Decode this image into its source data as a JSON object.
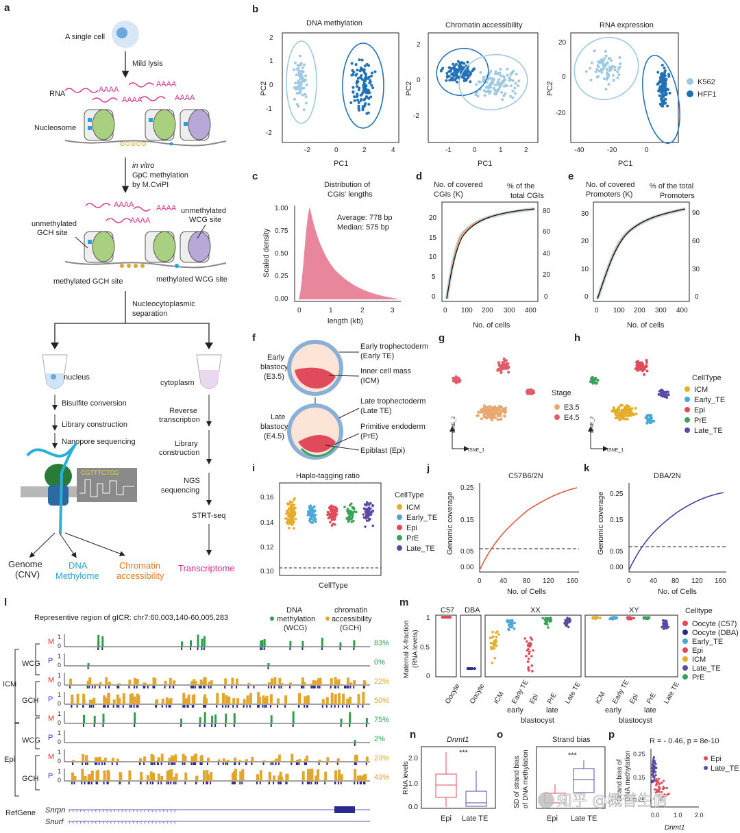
{
  "panels": {
    "a": {
      "letter": "a",
      "single_cell": "A single cell",
      "mild_lysis": "Mild lysis",
      "rna": "RNA",
      "polyA": "AAAA",
      "nucleosome": "Nucleosome",
      "in_vitro": "in vitro",
      "gpc_line1": "GpC methylation",
      "gpc_line2": "by M.CviPI",
      "unmeth_gch_1": "unmethylated",
      "unmeth_gch_2": "GCH site",
      "unmeth_wcg_1": "unmethylated",
      "unmeth_wcg_2": "WCG site",
      "meth_gch": "methylated GCH site",
      "meth_wcg": "methylated WCG site",
      "nucleo_1": "Nucleocytoplasmic",
      "nucleo_2": "separation",
      "nucleus": "nucleus",
      "cytoplasm": "cytoplasm",
      "bisulfite": "Bisulfite conversion",
      "library": "Library construction",
      "nanopore": "Nanopore sequencing",
      "rt_1": "Reverse",
      "rt_2": "transcription",
      "lib2_1": "Library",
      "lib2_2": "construction",
      "ngs_1": "NGS",
      "ngs_2": "sequencing",
      "strt": "STRT-seq",
      "genome_1": "Genome",
      "genome_2": "(CNV)",
      "dna_1": "DNA",
      "dna_2": "Methylome",
      "chrom_1": "Chromatin",
      "chrom_2": "accessibility",
      "transcriptome": "Transcriptome",
      "seq_text": "CGTTTCTCG"
    },
    "b": {
      "letter": "b",
      "titles": [
        "DNA methylation",
        "Chromatin accessibility",
        "RNA expression"
      ],
      "xlabel": "PC1",
      "ylabel": "PC2",
      "plot1_xticks": [
        "-2",
        "0",
        "2",
        "4"
      ],
      "plot1_yticks": [
        "2",
        "1",
        "0",
        "-1",
        "-2"
      ],
      "plot2_xticks": [
        "-1",
        "0",
        "1",
        "2"
      ],
      "plot2_yticks": [
        "2",
        "0",
        "-2"
      ],
      "plot3_xticks": [
        "-40",
        "-20",
        "0"
      ],
      "plot3_yticks": [
        "20",
        "0",
        "-20"
      ],
      "legend": [
        "K562",
        "HFF1"
      ],
      "colors": {
        "K562": "#9ecae1",
        "HFF1": "#2171b5"
      }
    },
    "c": {
      "letter": "c",
      "title_1": "Distribution of",
      "title_2": "CGIs' lengths",
      "avg": "Average: 778 bp",
      "median": "Median: 575 bp",
      "ylabel": "Scaled density",
      "xlabel": "length (kb)",
      "yticks": [
        "1.00",
        "0.75",
        "0.50",
        "0.25",
        "0.00"
      ],
      "xticks": [
        "0",
        "1",
        "2",
        "3"
      ],
      "color": "#e8879c"
    },
    "d": {
      "letter": "d",
      "left_1": "No. of covered",
      "left_2": "CGIs (K)",
      "right_1": "% of the",
      "right_2": "total CGIs",
      "yticks": [
        "20",
        "15",
        "10",
        "5",
        "0"
      ],
      "ryticks": [
        "80",
        "60",
        "40",
        "20",
        "0"
      ],
      "xticks": [
        "0",
        "100",
        "200",
        "300",
        "400"
      ],
      "xlabel": "No. of cells"
    },
    "e": {
      "letter": "e",
      "left_1": "No. of covered",
      "left_2": "Promoters (K)",
      "right_1": "% of the total",
      "right_2": "Promoters",
      "yticks": [
        "30",
        "20",
        "10",
        "0"
      ],
      "ryticks": [
        "90",
        "60",
        "30",
        "0"
      ],
      "xticks": [
        "0",
        "100",
        "200",
        "300",
        "400"
      ],
      "xlabel": "No. of cells"
    },
    "f": {
      "letter": "f",
      "early_1": "Early",
      "early_2": "blastocyst",
      "early_3": "(E3.5)",
      "late_1": "Late",
      "late_2": "blastocyst",
      "late_3": "(E4.5)",
      "ete_1": "Early trophectoderm",
      "ete_2": "(Early TE)",
      "icm_1": "Inner cell mass",
      "icm_2": "(ICM)",
      "lte_1": "Late trophectoderm",
      "lte_2": "(Late TE)",
      "pre_1": "Primitive endoderm",
      "pre_2": "(PrE)",
      "epi": "Epiblast (Epi)"
    },
    "g": {
      "letter": "g",
      "legend_title": "Stage",
      "legend": [
        "E3.5",
        "E4.5"
      ],
      "colors": [
        "#e8a870",
        "#e05c6a"
      ],
      "x_axis": "tSNE_1",
      "y_axis": "tSNE_2"
    },
    "h": {
      "letter": "h",
      "legend_title": "CellType",
      "legend": [
        "ICM",
        "Early_TE",
        "Epi",
        "PrE",
        "Late_TE"
      ],
      "colors": [
        "#e6ac2a",
        "#4aa8d8",
        "#e04a5a",
        "#3aa25a",
        "#5a4aa6"
      ],
      "x_axis": "tSNE_1",
      "y_axis": "tSNE_2"
    },
    "i": {
      "letter": "i",
      "title": "Haplo-tagging ratio",
      "yticks": [
        "0.16",
        "0.14",
        "0.12",
        "0.10"
      ],
      "xlabel": "CellType",
      "legend_title": "CellType",
      "legend": [
        "ICM",
        "Early_TE",
        "Epi",
        "PrE",
        "Late_TE"
      ],
      "colors": [
        "#e6ac2a",
        "#4aa8d8",
        "#e04a5a",
        "#3aa25a",
        "#5a4aa6"
      ]
    },
    "j": {
      "letter": "j",
      "title": "C57B6/2N",
      "ylabel": "Genomic coverage",
      "xlabel": "No. of Cells",
      "yticks": [
        "0.25",
        "0.15",
        "0.05",
        "0.00"
      ],
      "xticks": [
        "0",
        "40",
        "80",
        "120",
        "160"
      ],
      "color": "#e05040"
    },
    "k": {
      "letter": "k",
      "title": "DBA/2N",
      "ylabel": "Genomic coverage",
      "xlabel": "No. of Cells",
      "yticks": [
        "0.25",
        "0.15",
        "0.05",
        "0.00"
      ],
      "xticks": [
        "0",
        "40",
        "80",
        "120",
        "160"
      ],
      "color": "#3a3aa0"
    },
    "l": {
      "letter": "l",
      "title": "Representive region of gICR: chr7:60,003,140-60,005,283",
      "legend_dna_1": "DNA",
      "legend_dna_2": "methylation",
      "legend_dna_3": "(WCG)",
      "legend_chrom_1": "chromatin",
      "legend_chrom_2": "accessibility",
      "legend_chrom_3": "(GCH)",
      "icm": "ICM",
      "epi": "Epi",
      "wcg": "WCG",
      "gch": "GCH",
      "m": "M",
      "p": "P",
      "one": "1",
      "zero": "0",
      "tracks": [
        {
          "group": "ICM",
          "type": "WCG",
          "pct": "83%",
          "color": "#2e9e4a"
        },
        {
          "group": "ICM",
          "type": "WCG",
          "pct": "0%",
          "color": "#2e9e4a"
        },
        {
          "group": "ICM",
          "type": "GCH",
          "pct": "22%",
          "color": "#e0a630"
        },
        {
          "group": "ICM",
          "type": "GCH",
          "pct": "50%",
          "color": "#e0a630"
        },
        {
          "group": "Epi",
          "type": "WCG",
          "pct": "75%",
          "color": "#2e9e4a"
        },
        {
          "group": "Epi",
          "type": "WCG",
          "pct": "2%",
          "color": "#2e9e4a"
        },
        {
          "group": "Epi",
          "type": "GCH",
          "pct": "23%",
          "color": "#e0a630"
        },
        {
          "group": "Epi",
          "type": "GCH",
          "pct": "43%",
          "color": "#e0a630"
        }
      ],
      "refgene": "RefGene",
      "gene1": "Snrpn",
      "gene2": "Snurf"
    },
    "m": {
      "letter": "m",
      "ylabel_1": "Maternal X-fraction",
      "ylabel_2": "(RNA levels)",
      "yticks": [
        "1",
        "0.5",
        "0"
      ],
      "facets": [
        "C57",
        "DBA",
        "XX",
        "XY"
      ],
      "oocyte": "Oocyte",
      "groups": [
        "ICM",
        "Early TE",
        "Epi",
        "PrE",
        "Late TE"
      ],
      "early": "early",
      "late": "late",
      "blastocyst": "blastocyst",
      "legend_title": "Celltype",
      "legend": [
        "Oocyte (C57)",
        "Oocyte (DBA)",
        "Early_TE",
        "Epi",
        "ICM",
        "Late_TE",
        "PrE"
      ],
      "colors": [
        "#e04a5a",
        "#2a2a8a",
        "#4aa8d8",
        "#e04a5a",
        "#e6ac2a",
        "#5a4aa6",
        "#3aa25a"
      ]
    },
    "n": {
      "letter": "n",
      "title": "Dnmt1",
      "ylabel": "RNA levels",
      "sig": "***",
      "yticks": [
        "2.0",
        "1.0",
        "0.0"
      ],
      "groups": [
        "Epi",
        "Late TE"
      ]
    },
    "o": {
      "letter": "o",
      "title": "Strand bias",
      "ylabel_1": "SD of strand bias",
      "ylabel_2": "of DNA methylation",
      "sig": "***",
      "groups": [
        "Epi",
        "Late TE"
      ]
    },
    "p": {
      "letter": "p",
      "stat": "R = - 0.46, p = 8e-10",
      "ylabel_1": "Strand bias of",
      "ylabel_2": "DNA methylation",
      "xlabel": "Dnmt1",
      "yticks": [
        "0.25",
        "0.15",
        "0.05"
      ],
      "xticks": [
        "0.0",
        "1.0",
        "2.0"
      ],
      "legend": [
        "Epi",
        "Late_TE"
      ],
      "colors": [
        "#e04a5a",
        "#5a4aa6"
      ]
    }
  },
  "watermark": "知乎 @概普生信"
}
